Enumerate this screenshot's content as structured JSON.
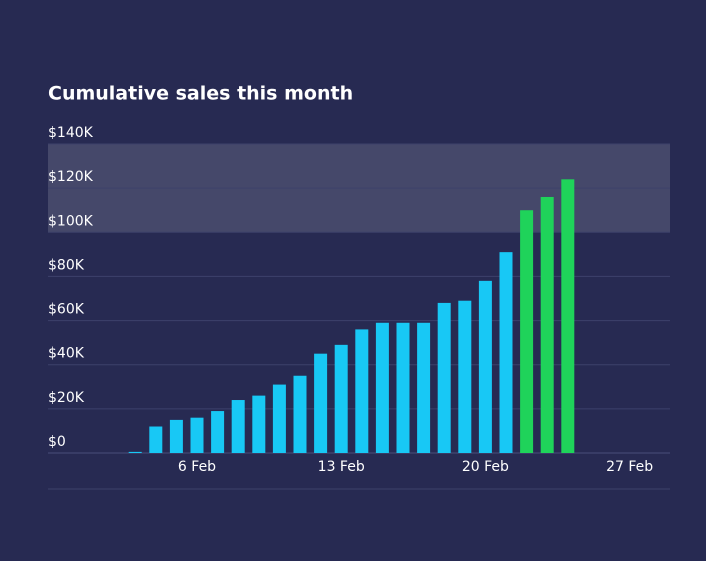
{
  "chart_data": {
    "type": "bar",
    "title": "Cumulative sales this month",
    "categories": [
      null,
      null,
      null,
      null,
      null,
      "6 Feb",
      null,
      null,
      null,
      null,
      null,
      null,
      "13 Feb",
      null,
      null,
      null,
      null,
      null,
      null,
      "20 Feb",
      null,
      null,
      null,
      null,
      null,
      null,
      "27 Feb",
      null
    ],
    "values": [
      null,
      null,
      500,
      12000,
      15000,
      16000,
      19000,
      24000,
      26000,
      31000,
      35000,
      45000,
      49000,
      56000,
      59000,
      59000,
      59000,
      68000,
      69000,
      78000,
      91000,
      110000,
      116000,
      124000,
      null,
      null,
      null,
      null
    ],
    "colors": [
      null,
      null,
      "#18c8f5",
      "#18c8f5",
      "#18c8f5",
      "#18c8f5",
      "#18c8f5",
      "#18c8f5",
      "#18c8f5",
      "#18c8f5",
      "#18c8f5",
      "#18c8f5",
      "#18c8f5",
      "#18c8f5",
      "#18c8f5",
      "#18c8f5",
      "#18c8f5",
      "#18c8f5",
      "#18c8f5",
      "#18c8f5",
      "#18c8f5",
      "#1fd35a",
      "#1fd35a",
      "#1fd35a",
      null,
      null,
      null,
      null
    ],
    "ylim": [
      0,
      140000
    ],
    "yticks": [
      {
        "value": 0,
        "label": "$0"
      },
      {
        "value": 20000,
        "label": "$20K"
      },
      {
        "value": 40000,
        "label": "$40K"
      },
      {
        "value": 60000,
        "label": "$60K"
      },
      {
        "value": 80000,
        "label": "$80K"
      },
      {
        "value": 100000,
        "label": "$100K"
      },
      {
        "value": 120000,
        "label": "$120K"
      },
      {
        "value": 140000,
        "label": "$140K"
      }
    ],
    "highlight_range": [
      100000,
      140000
    ],
    "grid": true
  }
}
